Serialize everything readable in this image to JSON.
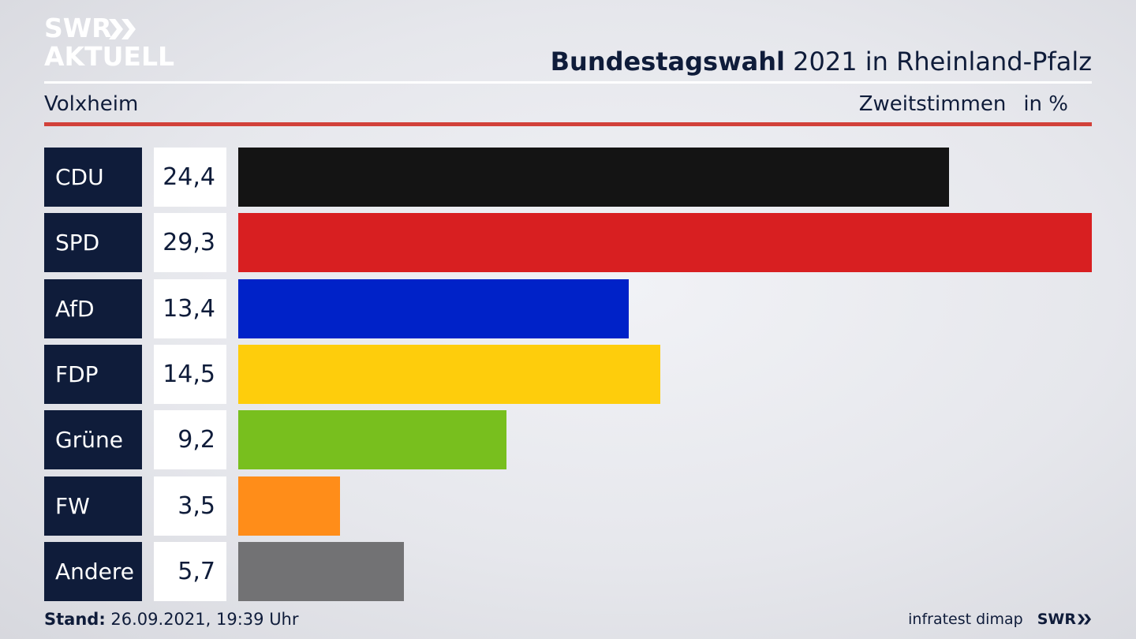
{
  "header": {
    "logo_line1": "SWR",
    "logo_line2": "AKTUELL",
    "title_bold": "Bundestagswahl",
    "title_rest": "2021 in Rheinland-Pfalz",
    "subtitle": "Volxheim",
    "measure": "Zweitstimmen",
    "unit": "in %"
  },
  "chart_data": {
    "type": "bar",
    "orientation": "horizontal",
    "title": "Bundestagswahl 2021 in Rheinland-Pfalz",
    "subtitle": "Volxheim",
    "xlabel": "",
    "ylabel": "",
    "categories": [
      "CDU",
      "SPD",
      "AfD",
      "FDP",
      "Grüne",
      "FW",
      "Andere"
    ],
    "values": [
      24.4,
      29.3,
      13.4,
      14.5,
      9.2,
      3.5,
      5.7
    ],
    "value_labels": [
      "24,4",
      "29,3",
      "13,4",
      "14,5",
      "9,2",
      "3,5",
      "5,7"
    ],
    "colors": [
      "#141414",
      "#d81f21",
      "#0022c8",
      "#fecd0c",
      "#78bf1e",
      "#ff8d19",
      "#727274"
    ],
    "xlim": [
      0,
      29.3
    ]
  },
  "footer": {
    "stand_label": "Stand:",
    "stand_value": "26.09.2021, 19:39 Uhr",
    "source": "infratest dimap",
    "brand": "SWR"
  },
  "theme": {
    "navy": "#0f1c3a",
    "accent_red": "#d2413a"
  }
}
